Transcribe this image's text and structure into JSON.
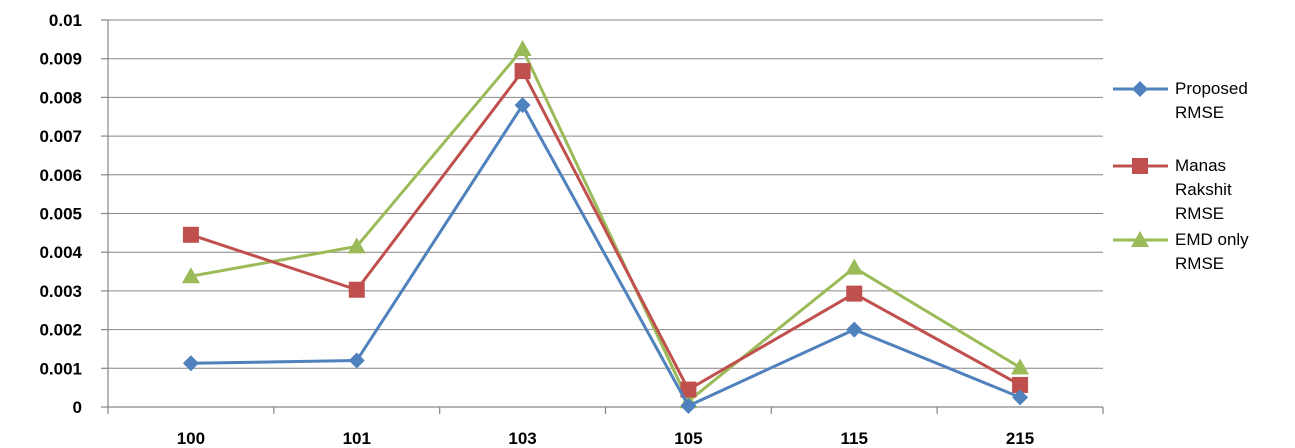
{
  "chart_data": {
    "type": "line",
    "categories": [
      "100",
      "101",
      "103",
      "105",
      "115",
      "215"
    ],
    "ylim": [
      0,
      0.01
    ],
    "y_ticks": [
      "0",
      "0.001",
      "0.002",
      "0.003",
      "0.004",
      "0.005",
      "0.006",
      "0.007",
      "0.008",
      "0.009",
      "0.01"
    ],
    "grid": true,
    "legend_position": "right",
    "series": [
      {
        "name": "Proposed RMSE",
        "legend_lines": [
          "Proposed",
          "RMSE"
        ],
        "color": "#4f81bd",
        "marker": "diamond",
        "values": [
          0.00113,
          0.0012,
          0.0078,
          3e-05,
          0.002,
          0.00025
        ]
      },
      {
        "name": "Manas Rakshit RMSE",
        "legend_lines": [
          "Manas",
          "Rakshit",
          "RMSE"
        ],
        "color": "#c0504d",
        "marker": "square",
        "values": [
          0.00445,
          0.00303,
          0.00868,
          0.00045,
          0.00293,
          0.00057
        ]
      },
      {
        "name": "EMD only RMSE",
        "legend_lines": [
          "EMD only",
          "RMSE"
        ],
        "color": "#9bbb59",
        "marker": "triangle",
        "values": [
          0.00338,
          0.00415,
          0.00925,
          0.00015,
          0.0036,
          0.00102
        ]
      }
    ]
  }
}
